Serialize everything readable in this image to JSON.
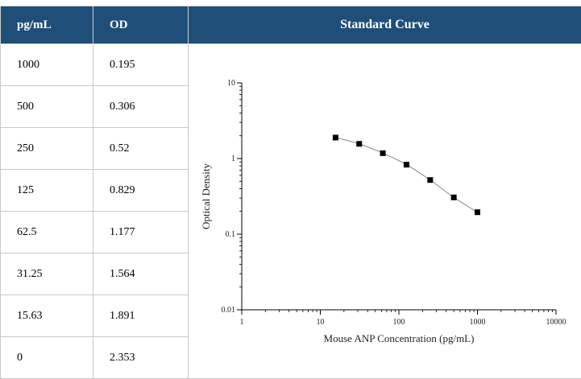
{
  "caption": "",
  "table": {
    "headers": [
      "pg/mL",
      "OD",
      "Standard Curve"
    ],
    "rows": [
      {
        "conc": "1000",
        "od": "0.195"
      },
      {
        "conc": "500",
        "od": "0.306"
      },
      {
        "conc": "250",
        "od": "0.52"
      },
      {
        "conc": "125",
        "od": "0.829"
      },
      {
        "conc": "62.5",
        "od": "1.177"
      },
      {
        "conc": "31.25",
        "od": "1.564"
      },
      {
        "conc": "15.63",
        "od": "1.891"
      },
      {
        "conc": "0",
        "od": "2.353"
      }
    ]
  },
  "chart_data": {
    "type": "scatter",
    "title": "",
    "xlabel": "Mouse ANP Concentration (pg/mL)",
    "ylabel": "Optical Density",
    "x_scale": "log",
    "y_scale": "log",
    "xlim": [
      1,
      10000
    ],
    "ylim": [
      0.01,
      10
    ],
    "x_ticks": [
      1,
      10,
      100,
      1000,
      10000
    ],
    "x_tick_labels": [
      "1",
      "10",
      "100",
      "1000",
      "10000"
    ],
    "y_ticks": [
      0.01,
      0.1,
      1,
      10
    ],
    "y_tick_labels": [
      "0.01",
      "0.1",
      "1",
      "10"
    ],
    "grid": false,
    "series": [
      {
        "x": [
          15.63,
          31.25,
          62.5,
          125,
          250,
          500,
          1000
        ],
        "y": [
          1.891,
          1.564,
          1.177,
          0.829,
          0.52,
          0.306,
          0.195
        ],
        "marker": "square",
        "line": "smooth",
        "color": "#000000",
        "line_color": "#888888"
      }
    ]
  }
}
